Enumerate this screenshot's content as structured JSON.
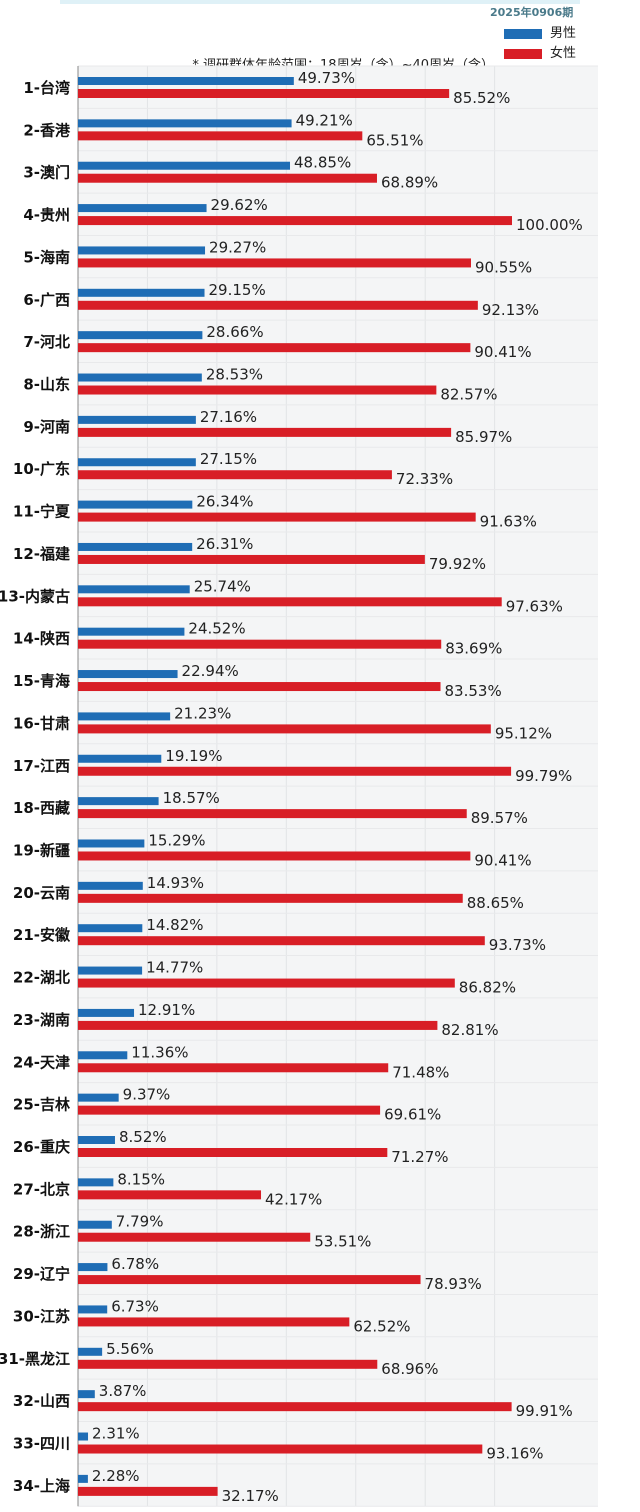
{
  "header": {
    "issue": "2025年0906期",
    "note": "* 调研群体年龄范围：18周岁（含）~40周岁（含）"
  },
  "colors": {
    "male": "#1f6db5",
    "female": "#d81e26"
  },
  "chart_data": {
    "type": "bar",
    "orientation": "horizontal",
    "xlim": [
      0,
      100
    ],
    "grid": true,
    "legend": "top-right",
    "categories": [
      "1-台湾",
      "2-香港",
      "3-澳门",
      "4-贵州",
      "5-海南",
      "6-广西",
      "7-河北",
      "8-山东",
      "9-河南",
      "10-广东",
      "11-宁夏",
      "12-福建",
      "13-内蒙古",
      "14-陕西",
      "15-青海",
      "16-甘肃",
      "17-江西",
      "18-西藏",
      "19-新疆",
      "20-云南",
      "21-安徽",
      "22-湖北",
      "23-湖南",
      "24-天津",
      "25-吉林",
      "26-重庆",
      "27-北京",
      "28-浙江",
      "29-辽宁",
      "30-江苏",
      "31-黑龙江",
      "32-山西",
      "33-四川",
      "34-上海"
    ],
    "series": [
      {
        "name": "男性",
        "values": [
          49.73,
          49.21,
          48.85,
          29.62,
          29.27,
          29.15,
          28.66,
          28.53,
          27.16,
          27.15,
          26.34,
          26.31,
          25.74,
          24.52,
          22.94,
          21.23,
          19.19,
          18.57,
          15.29,
          14.93,
          14.82,
          14.77,
          12.91,
          11.36,
          9.37,
          8.52,
          8.15,
          7.79,
          6.78,
          6.73,
          5.56,
          3.87,
          2.31,
          2.28
        ]
      },
      {
        "name": "女性",
        "values": [
          85.52,
          65.51,
          68.89,
          100.0,
          90.55,
          92.13,
          90.41,
          82.57,
          85.97,
          72.33,
          91.63,
          79.92,
          97.63,
          83.69,
          83.53,
          95.12,
          99.79,
          89.57,
          90.41,
          88.65,
          93.73,
          86.82,
          82.81,
          71.48,
          69.61,
          71.27,
          42.17,
          53.51,
          78.93,
          62.52,
          68.96,
          99.91,
          93.16,
          32.17
        ]
      }
    ]
  }
}
